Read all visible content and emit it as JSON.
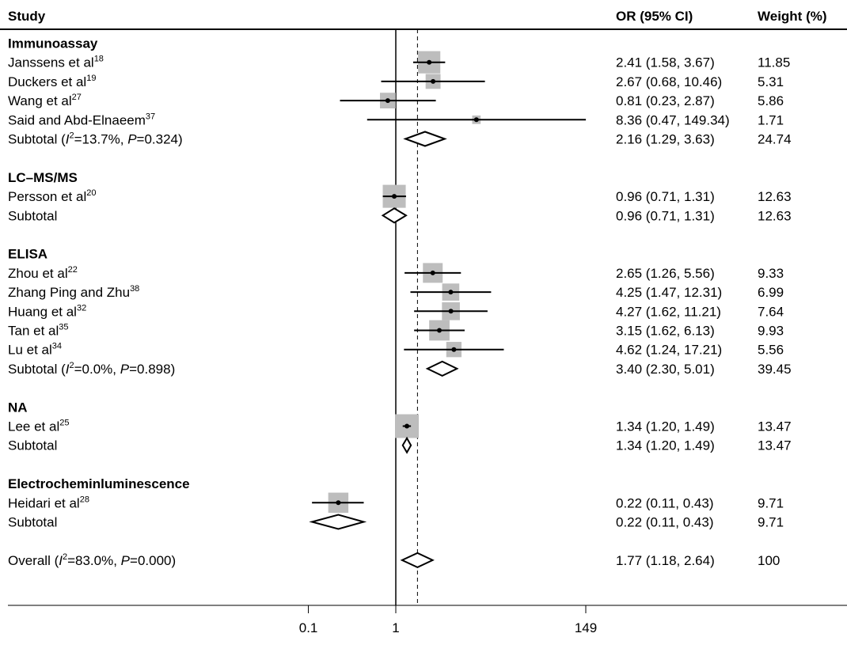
{
  "chart_data": {
    "type": "forest",
    "headers": {
      "study": "Study",
      "or": "OR (95% CI)",
      "weight": "Weight (%)"
    },
    "x_scale": "log",
    "x_ticks": [
      {
        "value": 0.1,
        "label": "0.1"
      },
      {
        "value": 1,
        "label": "1"
      },
      {
        "value": 149,
        "label": "149"
      }
    ],
    "null_line": 1,
    "overall_line": 1.77,
    "rows": [
      {
        "kind": "group",
        "label": "Immunoassay"
      },
      {
        "kind": "study",
        "label": "Janssens et al",
        "sup": "18",
        "or": 2.41,
        "lo": 1.58,
        "hi": 3.67,
        "ci_text": "2.41 (1.58, 3.67)",
        "weight": 11.85,
        "weight_text": "11.85"
      },
      {
        "kind": "study",
        "label": "Duckers et al",
        "sup": "19",
        "or": 2.67,
        "lo": 0.68,
        "hi": 10.46,
        "ci_text": "2.67 (0.68, 10.46)",
        "weight": 5.31,
        "weight_text": "5.31"
      },
      {
        "kind": "study",
        "label": "Wang et al",
        "sup": "27",
        "or": 0.81,
        "lo": 0.23,
        "hi": 2.87,
        "ci_text": "0.81 (0.23, 2.87)",
        "weight": 5.86,
        "weight_text": "5.86"
      },
      {
        "kind": "study",
        "label": "Said and Abd-Elnaeem",
        "sup": "37",
        "or": 8.36,
        "lo": 0.47,
        "hi": 149.34,
        "ci_text": "8.36 (0.47, 149.34)",
        "weight": 1.71,
        "weight_text": "1.71"
      },
      {
        "kind": "subtotal",
        "label": "Subtotal (",
        "i2": "=13.7%, ",
        "p": "=0.324)",
        "or": 2.16,
        "lo": 1.29,
        "hi": 3.63,
        "ci_text": "2.16 (1.29, 3.63)",
        "weight_text": "24.74"
      },
      {
        "kind": "gap"
      },
      {
        "kind": "group",
        "label": "LC–MS/MS"
      },
      {
        "kind": "study",
        "label": "Persson et al",
        "sup": "20",
        "or": 0.96,
        "lo": 0.71,
        "hi": 1.31,
        "ci_text": "0.96 (0.71, 1.31)",
        "weight": 12.63,
        "weight_text": "12.63"
      },
      {
        "kind": "subtotal",
        "label": "Subtotal",
        "or": 0.96,
        "lo": 0.71,
        "hi": 1.31,
        "ci_text": "0.96 (0.71, 1.31)",
        "weight_text": "12.63"
      },
      {
        "kind": "gap"
      },
      {
        "kind": "group",
        "label": "ELISA"
      },
      {
        "kind": "study",
        "label": "Zhou et al",
        "sup": "22",
        "or": 2.65,
        "lo": 1.26,
        "hi": 5.56,
        "ci_text": "2.65 (1.26, 5.56)",
        "weight": 9.33,
        "weight_text": "9.33"
      },
      {
        "kind": "study",
        "label": "Zhang Ping and Zhu",
        "sup": "38",
        "or": 4.25,
        "lo": 1.47,
        "hi": 12.31,
        "ci_text": "4.25 (1.47, 12.31)",
        "weight": 6.99,
        "weight_text": "6.99"
      },
      {
        "kind": "study",
        "label": "Huang et al",
        "sup": "32",
        "or": 4.27,
        "lo": 1.62,
        "hi": 11.21,
        "ci_text": "4.27 (1.62, 11.21)",
        "weight": 7.64,
        "weight_text": "7.64"
      },
      {
        "kind": "study",
        "label": "Tan et al",
        "sup": "35",
        "or": 3.15,
        "lo": 1.62,
        "hi": 6.13,
        "ci_text": "3.15 (1.62, 6.13)",
        "weight": 9.93,
        "weight_text": "9.93"
      },
      {
        "kind": "study",
        "label": "Lu et al",
        "sup": "34",
        "or": 4.62,
        "lo": 1.24,
        "hi": 17.21,
        "ci_text": "4.62 (1.24, 17.21)",
        "weight": 5.56,
        "weight_text": "5.56"
      },
      {
        "kind": "subtotal",
        "label": "Subtotal (",
        "i2": "=0.0%, ",
        "p": "=0.898)",
        "or": 3.4,
        "lo": 2.3,
        "hi": 5.01,
        "ci_text": "3.40 (2.30, 5.01)",
        "weight_text": "39.45"
      },
      {
        "kind": "gap"
      },
      {
        "kind": "group",
        "label": "NA"
      },
      {
        "kind": "study",
        "label": "Lee et al",
        "sup": "25",
        "or": 1.34,
        "lo": 1.2,
        "hi": 1.49,
        "ci_text": "1.34 (1.20, 1.49)",
        "weight": 13.47,
        "weight_text": "13.47"
      },
      {
        "kind": "subtotal",
        "label": "Subtotal",
        "or": 1.34,
        "lo": 1.2,
        "hi": 1.49,
        "ci_text": "1.34 (1.20, 1.49)",
        "weight_text": "13.47"
      },
      {
        "kind": "gap"
      },
      {
        "kind": "group",
        "label": "Electrocheminluminescence"
      },
      {
        "kind": "study",
        "label": "Heidari et al",
        "sup": "28",
        "or": 0.22,
        "lo": 0.11,
        "hi": 0.43,
        "ci_text": "0.22 (0.11, 0.43)",
        "weight": 9.71,
        "weight_text": "9.71"
      },
      {
        "kind": "subtotal",
        "label": "Subtotal",
        "or": 0.22,
        "lo": 0.11,
        "hi": 0.43,
        "ci_text": "0.22 (0.11, 0.43)",
        "weight_text": "9.71"
      },
      {
        "kind": "gap"
      },
      {
        "kind": "overall",
        "label": "Overall (",
        "i2": "=83.0%, ",
        "p": "=0.000)",
        "or": 1.77,
        "lo": 1.18,
        "hi": 2.64,
        "ci_text": "1.77 (1.18, 2.64)",
        "weight_text": "100"
      }
    ]
  }
}
